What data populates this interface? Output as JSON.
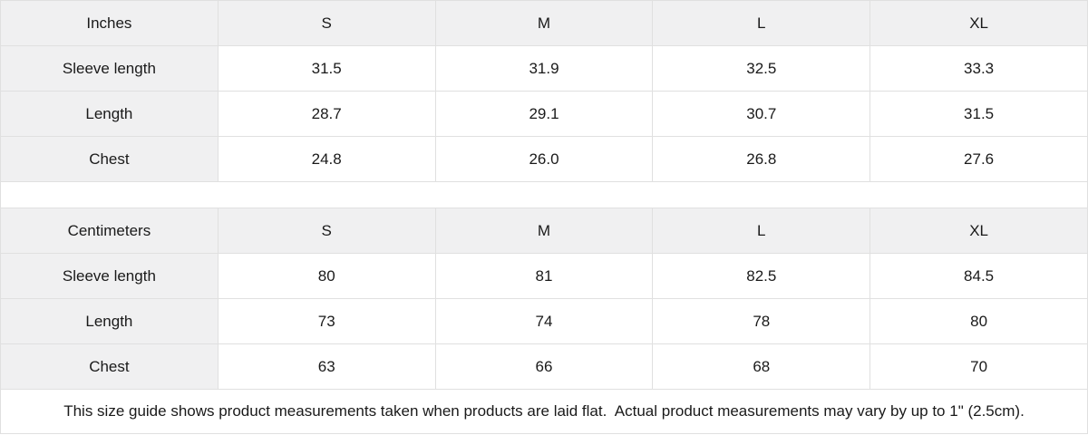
{
  "colors": {
    "label_bg": "#f0f0f1",
    "border": "#e0e0e0",
    "text": "#1a1a1a",
    "background": "#ffffff"
  },
  "tables": [
    {
      "unit_label": "Inches",
      "sizes": [
        "S",
        "M",
        "L",
        "XL"
      ],
      "rows": [
        {
          "label": "Sleeve length",
          "values": [
            "31.5",
            "31.9",
            "32.5",
            "33.3"
          ]
        },
        {
          "label": "Length",
          "values": [
            "28.7",
            "29.1",
            "30.7",
            "31.5"
          ]
        },
        {
          "label": "Chest",
          "values": [
            "24.8",
            "26.0",
            "26.8",
            "27.6"
          ]
        }
      ]
    },
    {
      "unit_label": "Centimeters",
      "sizes": [
        "S",
        "M",
        "L",
        "XL"
      ],
      "rows": [
        {
          "label": "Sleeve length",
          "values": [
            "80",
            "81",
            "82.5",
            "84.5"
          ]
        },
        {
          "label": "Length",
          "values": [
            "73",
            "74",
            "78",
            "80"
          ]
        },
        {
          "label": "Chest",
          "values": [
            "63",
            "66",
            "68",
            "70"
          ]
        }
      ]
    }
  ],
  "footer": {
    "note": "This size guide shows product measurements taken when products are laid flat.  Actual product measurements may vary by up to 1\" (2.5cm)."
  },
  "chart_data": [
    {
      "type": "table",
      "title": "Inches",
      "columns": [
        "Inches",
        "S",
        "M",
        "L",
        "XL"
      ],
      "rows": [
        [
          "Sleeve length",
          31.5,
          31.9,
          32.5,
          33.3
        ],
        [
          "Length",
          28.7,
          29.1,
          30.7,
          31.5
        ],
        [
          "Chest",
          24.8,
          26.0,
          26.8,
          27.6
        ]
      ]
    },
    {
      "type": "table",
      "title": "Centimeters",
      "columns": [
        "Centimeters",
        "S",
        "M",
        "L",
        "XL"
      ],
      "rows": [
        [
          "Sleeve length",
          80,
          81,
          82.5,
          84.5
        ],
        [
          "Length",
          73,
          74,
          78,
          80
        ],
        [
          "Chest",
          63,
          66,
          68,
          70
        ]
      ]
    }
  ]
}
